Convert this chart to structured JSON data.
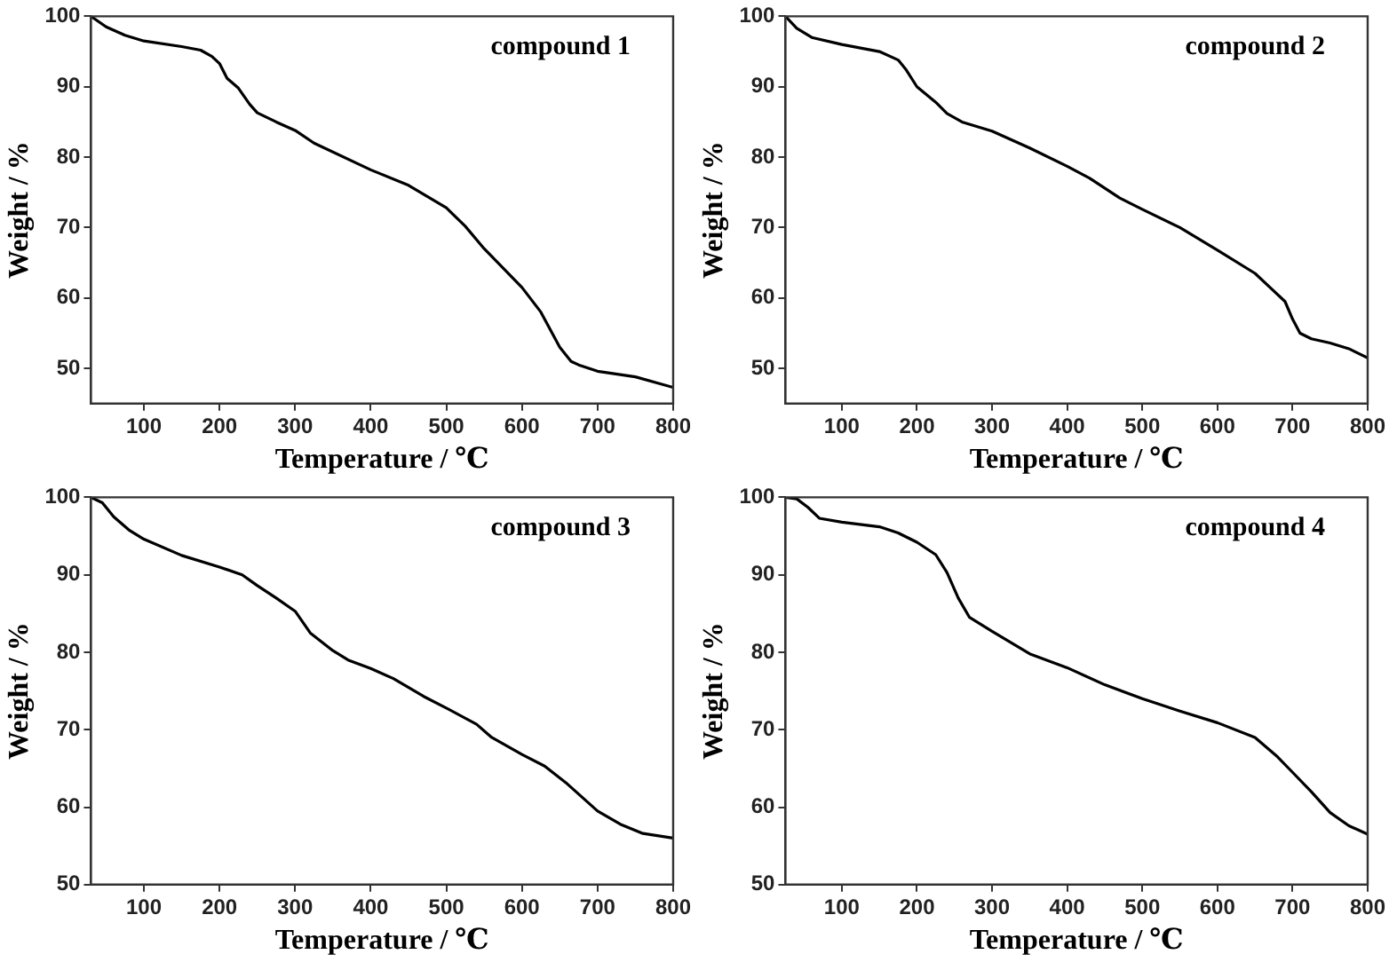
{
  "chart_data": [
    {
      "type": "line",
      "annotations": [
        "compound 1"
      ],
      "xlabel": "Temperature / ℃",
      "ylabel": "Weight / %",
      "xlim": [
        30,
        800
      ],
      "ylim": [
        45,
        100
      ],
      "xticks": [
        100,
        200,
        300,
        400,
        500,
        600,
        700,
        800
      ],
      "yticks": [
        50,
        60,
        70,
        80,
        90,
        100
      ],
      "grid": false,
      "legend": false,
      "series": [
        {
          "color": "#000000",
          "x": [
            30,
            50,
            75,
            100,
            150,
            175,
            190,
            200,
            210,
            225,
            240,
            250,
            275,
            300,
            325,
            400,
            450,
            500,
            525,
            550,
            600,
            625,
            650,
            665,
            675,
            700,
            750,
            800
          ],
          "values": [
            100,
            98.5,
            97.3,
            96.5,
            95.7,
            95.2,
            94.3,
            93.3,
            91.2,
            89.8,
            87.5,
            86.3,
            85,
            83.8,
            82,
            78.2,
            76,
            72.8,
            70.2,
            67,
            61.5,
            58,
            53,
            51,
            50.5,
            49.6,
            48.8,
            47.3
          ]
        }
      ]
    },
    {
      "type": "line",
      "annotations": [
        "compound 2"
      ],
      "xlabel": "Temperature / ℃",
      "ylabel": "Weight / %",
      "xlim": [
        25,
        800
      ],
      "ylim": [
        45,
        100
      ],
      "xticks": [
        100,
        200,
        300,
        400,
        500,
        600,
        700,
        800
      ],
      "yticks": [
        50,
        60,
        70,
        80,
        90,
        100
      ],
      "grid": false,
      "legend": false,
      "series": [
        {
          "color": "#000000",
          "x": [
            25,
            40,
            60,
            100,
            150,
            175,
            185,
            200,
            225,
            240,
            260,
            300,
            350,
            400,
            430,
            470,
            500,
            550,
            600,
            650,
            670,
            690,
            700,
            710,
            725,
            750,
            775,
            800
          ],
          "values": [
            100,
            98.3,
            97,
            96,
            95,
            93.8,
            92.5,
            90,
            87.8,
            86.2,
            85,
            83.7,
            81.3,
            78.7,
            77,
            74.2,
            72.6,
            70,
            66.8,
            63.5,
            61.5,
            59.5,
            57,
            55,
            54.2,
            53.6,
            52.8,
            51.5
          ]
        }
      ]
    },
    {
      "type": "line",
      "annotations": [
        "compound 3"
      ],
      "xlabel": "Temperature / ℃",
      "ylabel": "Weight / %",
      "xlim": [
        30,
        800
      ],
      "ylim": [
        50,
        100
      ],
      "xticks": [
        100,
        200,
        300,
        400,
        500,
        600,
        700,
        800
      ],
      "yticks": [
        50,
        60,
        70,
        80,
        90,
        100
      ],
      "grid": false,
      "legend": false,
      "series": [
        {
          "color": "#000000",
          "x": [
            30,
            45,
            60,
            80,
            100,
            150,
            200,
            230,
            250,
            275,
            300,
            320,
            350,
            370,
            400,
            430,
            470,
            500,
            540,
            560,
            600,
            630,
            660,
            700,
            730,
            760,
            800
          ],
          "values": [
            100,
            99.3,
            97.5,
            95.8,
            94.6,
            92.5,
            91,
            90,
            88.6,
            87,
            85.3,
            82.5,
            80.2,
            79,
            77.9,
            76.6,
            74.3,
            72.8,
            70.7,
            69,
            66.8,
            65.3,
            63,
            59.5,
            57.8,
            56.6,
            56
          ]
        }
      ]
    },
    {
      "type": "line",
      "annotations": [
        "compound 4"
      ],
      "xlabel": "Temperature / ℃",
      "ylabel": "Weight / %",
      "xlim": [
        25,
        800
      ],
      "ylim": [
        50,
        100
      ],
      "xticks": [
        100,
        200,
        300,
        400,
        500,
        600,
        700,
        800
      ],
      "yticks": [
        50,
        60,
        70,
        80,
        90,
        100
      ],
      "grid": false,
      "legend": false,
      "series": [
        {
          "color": "#000000",
          "x": [
            25,
            40,
            55,
            70,
            100,
            150,
            175,
            200,
            225,
            240,
            255,
            270,
            300,
            350,
            400,
            450,
            500,
            550,
            600,
            650,
            680,
            700,
            725,
            750,
            775,
            800
          ],
          "values": [
            100,
            99.8,
            98.7,
            97.3,
            96.8,
            96.2,
            95.4,
            94.2,
            92.6,
            90.3,
            87,
            84.5,
            82.7,
            79.8,
            78,
            75.8,
            74,
            72.4,
            70.9,
            69,
            66.5,
            64.5,
            62,
            59.3,
            57.6,
            56.5
          ]
        }
      ]
    }
  ]
}
